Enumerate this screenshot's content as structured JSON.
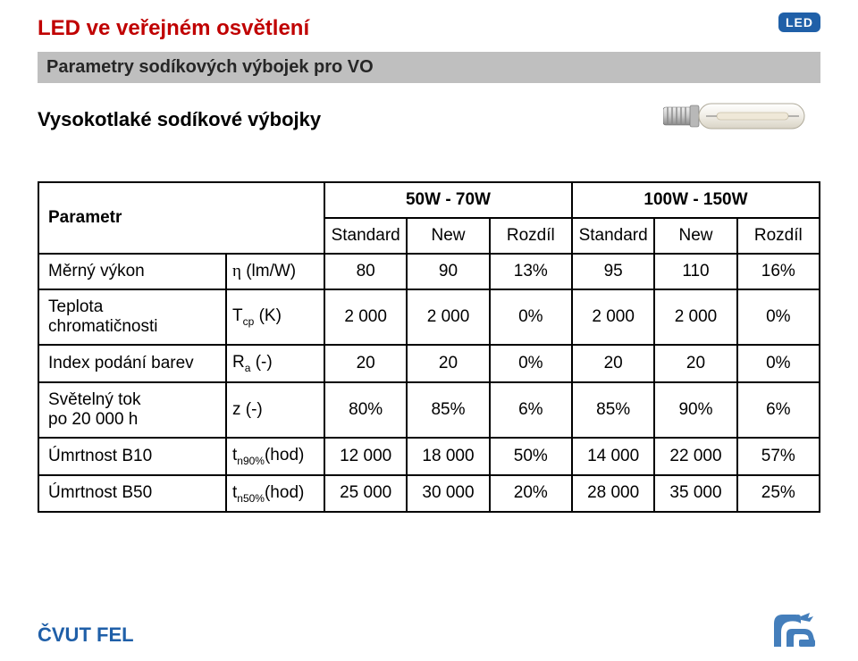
{
  "page_title": "LED ve veřejném osvětlení",
  "led_badge": "LED",
  "section_bar": "Parametry sodíkových výbojek pro VO",
  "subheading": "Vysokotlaké sodíkové výbojky",
  "footer": "ČVUT FEL",
  "colors": {
    "title": "#c00000",
    "section_bg": "#bfbfbf",
    "section_fg": "#262626",
    "badge_bg": "#2060a8",
    "badge_fg": "#ffffff",
    "footer": "#1f5fa8",
    "lion": "#3a78b8",
    "table_border": "#000000",
    "background": "#ffffff"
  },
  "table": {
    "header": {
      "param_label": "Parametr",
      "group1": "50W - 70W",
      "group2": "100W - 150W",
      "sub": [
        "Standard",
        "New",
        "Rozdíl",
        "Standard",
        "New",
        "Rozdíl"
      ]
    },
    "rows": [
      {
        "label": "Měrný výkon",
        "symbol_html": "<span class='greek'>η</span> (lm/W)",
        "vals": [
          "80",
          "90",
          "13%",
          "95",
          "110",
          "16%"
        ]
      },
      {
        "label": "Teplota\nchromatičnosti",
        "symbol_html": "T<sub>cp</sub> (K)",
        "vals": [
          "2 000",
          "2 000",
          "0%",
          "2 000",
          "2 000",
          "0%"
        ]
      },
      {
        "label": "Index podání barev",
        "symbol_html": "R<sub>a</sub> (-)",
        "vals": [
          "20",
          "20",
          "0%",
          "20",
          "20",
          "0%"
        ]
      },
      {
        "label": "Světelný tok\npo 20 000 h",
        "symbol_html": "z (-)",
        "vals": [
          "80%",
          "85%",
          "6%",
          "85%",
          "90%",
          "6%"
        ]
      },
      {
        "label": "Úmrtnost B10",
        "symbol_html": "t<sub>n90%</sub>(hod)",
        "vals": [
          "12 000",
          "18 000",
          "50%",
          "14 000",
          "22 000",
          "57%"
        ]
      },
      {
        "label": "Úmrtnost B50",
        "symbol_html": "t<sub>n50%</sub>(hod)",
        "vals": [
          "25 000",
          "30 000",
          "20%",
          "28 000",
          "35 000",
          "25%"
        ]
      }
    ]
  }
}
